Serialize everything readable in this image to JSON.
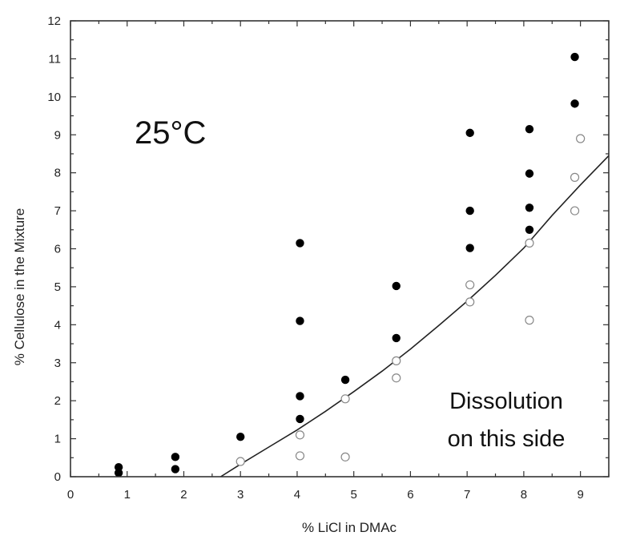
{
  "chart_data": {
    "type": "scatter",
    "title": "",
    "xlabel": "% LiCl in DMAc",
    "ylabel": "% Cellulose in the Mixture",
    "xlim": [
      0,
      9.5
    ],
    "ylim": [
      0,
      12
    ],
    "x_ticks": [
      "0",
      "1",
      "2",
      "3",
      "4",
      "5",
      "6",
      "7",
      "8",
      "9"
    ],
    "y_ticks": [
      "0",
      "1",
      "2",
      "3",
      "4",
      "5",
      "6",
      "7",
      "8",
      "9",
      "10",
      "11",
      "12"
    ],
    "grid": false,
    "annotations": {
      "temperature": "25°C",
      "region_line1": "Dissolution",
      "region_line2": "on this side"
    },
    "series": [
      {
        "marker": "filled-circle",
        "color": "#000000",
        "points": [
          [
            0.85,
            0.25
          ],
          [
            0.85,
            0.1
          ],
          [
            1.85,
            0.52
          ],
          [
            1.85,
            0.2
          ],
          [
            3.0,
            1.05
          ],
          [
            4.05,
            6.15
          ],
          [
            4.05,
            4.1
          ],
          [
            4.05,
            2.12
          ],
          [
            4.05,
            1.52
          ],
          [
            4.85,
            2.55
          ],
          [
            5.75,
            5.02
          ],
          [
            5.75,
            3.65
          ],
          [
            7.05,
            9.05
          ],
          [
            7.05,
            7.0
          ],
          [
            7.05,
            6.02
          ],
          [
            8.1,
            9.15
          ],
          [
            8.1,
            7.98
          ],
          [
            8.1,
            7.08
          ],
          [
            8.1,
            6.5
          ],
          [
            8.9,
            11.05
          ],
          [
            8.9,
            9.82
          ]
        ]
      },
      {
        "marker": "open-circle",
        "color": "#888888",
        "points": [
          [
            3.0,
            0.4
          ],
          [
            4.05,
            1.1
          ],
          [
            4.05,
            0.55
          ],
          [
            4.85,
            2.05
          ],
          [
            4.85,
            0.52
          ],
          [
            5.75,
            3.05
          ],
          [
            5.75,
            2.6
          ],
          [
            7.05,
            5.05
          ],
          [
            7.05,
            4.6
          ],
          [
            8.1,
            6.15
          ],
          [
            8.1,
            4.12
          ],
          [
            8.9,
            7.88
          ],
          [
            8.9,
            7.0
          ],
          [
            9.0,
            8.9
          ]
        ]
      },
      {
        "marker": "line",
        "color": "#222222",
        "points": [
          [
            2.65,
            0.0
          ],
          [
            3.0,
            0.33
          ],
          [
            3.5,
            0.78
          ],
          [
            4.0,
            1.23
          ],
          [
            4.5,
            1.72
          ],
          [
            5.0,
            2.24
          ],
          [
            5.5,
            2.78
          ],
          [
            6.0,
            3.36
          ],
          [
            6.5,
            3.98
          ],
          [
            7.0,
            4.62
          ],
          [
            7.5,
            5.3
          ],
          [
            8.0,
            6.02
          ],
          [
            8.5,
            6.88
          ],
          [
            9.0,
            7.68
          ],
          [
            9.5,
            8.45
          ]
        ]
      }
    ]
  }
}
